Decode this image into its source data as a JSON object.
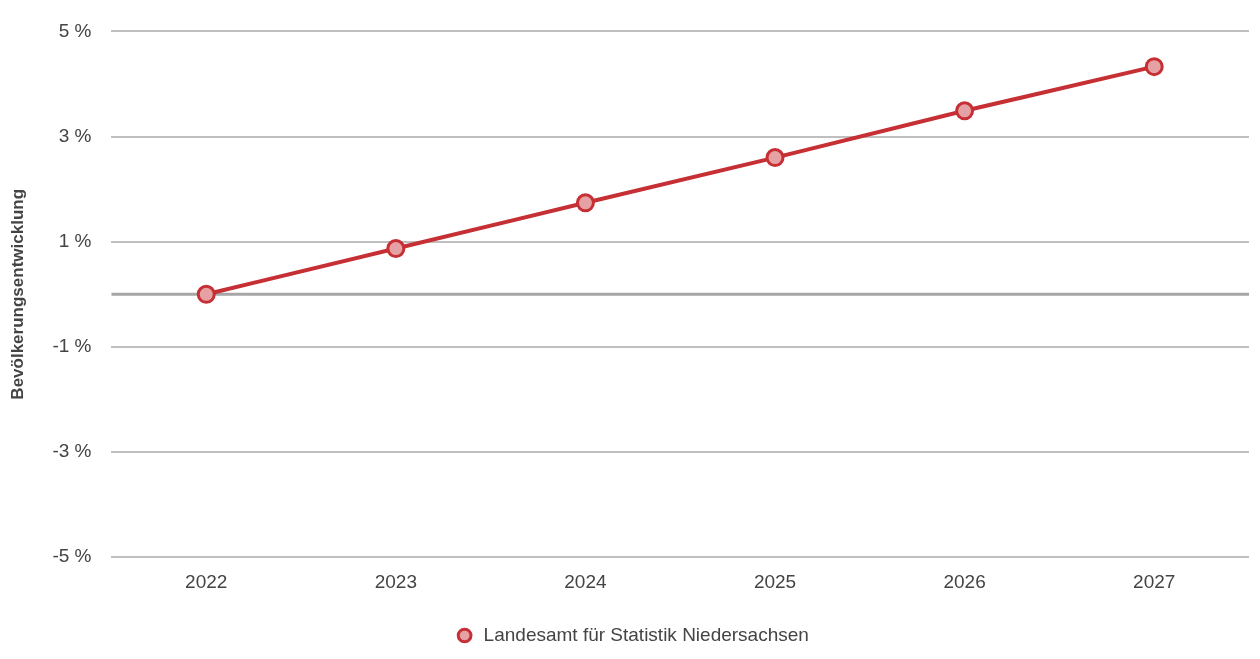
{
  "chart_data": {
    "type": "line",
    "ylabel": "Bevölkerungsentwicklung",
    "categories": [
      "2022",
      "2023",
      "2024",
      "2025",
      "2026",
      "2027"
    ],
    "series": [
      {
        "name": "Landesamt für Statistik Niedersachsen",
        "color": "#c62f34",
        "values": [
          0,
          0.87,
          1.74,
          2.6,
          3.49,
          4.33
        ]
      }
    ],
    "ylim": [
      -5,
      5
    ],
    "yticks": [
      {
        "value": -5,
        "label": "-5 %"
      },
      {
        "value": -3,
        "label": "-3 %"
      },
      {
        "value": -1,
        "label": "-1 %"
      },
      {
        "value": 1,
        "label": "1 %"
      },
      {
        "value": 3,
        "label": "3 %"
      },
      {
        "value": 5,
        "label": "5 %"
      }
    ],
    "ref_lines": [
      {
        "axis": "y",
        "value": 0,
        "color": "#a6a6a6"
      }
    ],
    "grid": "y",
    "legend": "bottom",
    "marker": "circle",
    "line_style": "solid"
  }
}
